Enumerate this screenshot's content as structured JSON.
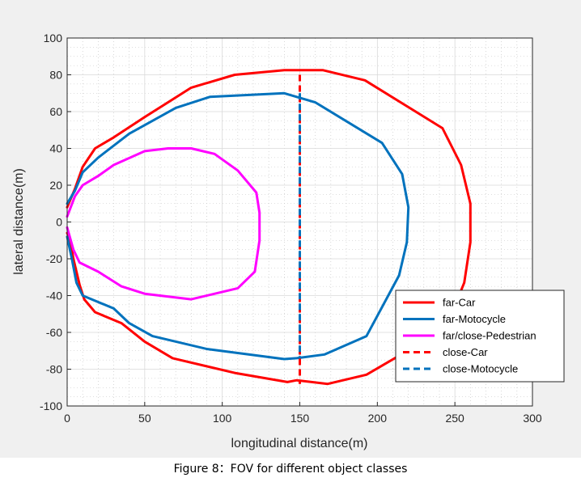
{
  "caption": "Figure 8：FOV for different object classes",
  "colors": {
    "car": "#ff0000",
    "motocycle": "#0072bd",
    "pedestrian": "#ff00ff",
    "background": "#f0f0f0",
    "plot_area": "#ffffff",
    "grid": "#bfbfbf"
  },
  "chart_data": {
    "type": "line",
    "title": "",
    "xlabel": "longitudinal distance(m)",
    "ylabel": "lateral distance(m)",
    "xlim": [
      0,
      300
    ],
    "ylim": [
      -100,
      100
    ],
    "xticks": [
      0,
      50,
      100,
      150,
      200,
      250,
      300
    ],
    "yticks": [
      -100,
      -80,
      -60,
      -40,
      -20,
      0,
      20,
      40,
      60,
      80,
      100
    ],
    "grid": true,
    "minor_grid": true,
    "legend_position": "lower-right",
    "series": [
      {
        "name": "far-Car",
        "color": "#ff0000",
        "dash": "solid",
        "x": [
          0,
          5,
          10,
          18,
          30,
          50,
          80,
          108,
          140,
          165,
          192,
          242,
          254,
          260,
          260,
          256,
          244,
          193,
          168,
          148,
          142,
          108,
          68,
          50,
          35,
          18,
          11,
          8,
          4,
          2,
          0
        ],
        "y": [
          8,
          18,
          30,
          40,
          46,
          57,
          73,
          80,
          82.5,
          82.5,
          77,
          51,
          31,
          10,
          -11,
          -33,
          -58,
          -83,
          -88,
          -86,
          -87,
          -82,
          -74,
          -65,
          -55,
          -49,
          -42,
          -34,
          -20,
          -10,
          -6
        ]
      },
      {
        "name": "far-Motocycle",
        "color": "#0072bd",
        "dash": "solid",
        "x": [
          0,
          5,
          10,
          20,
          40,
          70,
          92,
          140,
          160,
          203,
          216,
          220,
          219,
          214,
          193,
          166,
          148,
          140,
          90,
          55,
          40,
          30,
          10,
          6,
          3,
          0
        ],
        "y": [
          10,
          17,
          27,
          35,
          48,
          62,
          68,
          70,
          65,
          43,
          26,
          8,
          -11,
          -29,
          -62,
          -72,
          -74,
          -74.5,
          -69,
          -62,
          -55,
          -47,
          -40,
          -33,
          -20,
          -8
        ]
      },
      {
        "name": "far/close-Pedestrian",
        "color": "#ff00ff",
        "dash": "solid",
        "x": [
          0,
          5,
          10,
          20,
          30,
          50,
          65,
          80,
          95,
          110,
          122,
          124,
          124,
          121,
          110,
          80,
          50,
          35,
          20,
          8,
          4,
          0
        ],
        "y": [
          3,
          14,
          20,
          25,
          31,
          38.5,
          40,
          40,
          37,
          28,
          16,
          5,
          -10,
          -27,
          -36,
          -42,
          -39,
          -35,
          -27,
          -22,
          -15,
          -3
        ]
      },
      {
        "name": "close-Car",
        "color": "#ff0000",
        "dash": "dashed",
        "x": [
          150,
          150
        ],
        "y": [
          80,
          -88
        ]
      },
      {
        "name": "close-Motocycle",
        "color": "#0072bd",
        "dash": "dashed",
        "x": [
          150,
          150
        ],
        "y": [
          70,
          -74
        ]
      }
    ]
  }
}
